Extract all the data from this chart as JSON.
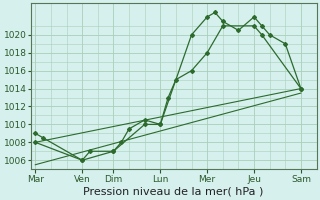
{
  "background_color": "#d6f0ee",
  "grid_color": "#aacfb8",
  "line_color": "#2d6b2d",
  "marker_color": "#2d6b2d",
  "xlabel": "Pression niveau de la mer( hPa )",
  "xlabel_fontsize": 8,
  "ylim": [
    1005.0,
    1023.5
  ],
  "yticks": [
    1006,
    1008,
    1010,
    1012,
    1014,
    1016,
    1018,
    1020
  ],
  "day_labels": [
    "Mar",
    "Ven",
    "Dim",
    "Lun",
    "Mer",
    "Jeu",
    "Sam"
  ],
  "day_positions": [
    0,
    3,
    5,
    8,
    11,
    14,
    17
  ],
  "xlim": [
    -0.3,
    18.0
  ],
  "series1_x": [
    0,
    0.5,
    3,
    3.5,
    5,
    5.5,
    6,
    7,
    8,
    8.5,
    9,
    10,
    11,
    12,
    14,
    14.5,
    17
  ],
  "series1_y": [
    1009,
    1008.5,
    1006,
    1007,
    1007,
    1008,
    1009.5,
    1010.5,
    1010,
    1013,
    1015,
    1016,
    1018,
    1021,
    1021,
    1020,
    1014
  ],
  "series2_x": [
    0,
    3,
    5,
    7,
    8,
    10,
    11,
    11.5,
    12,
    13,
    14,
    14.5,
    15,
    16,
    17
  ],
  "series2_y": [
    1008,
    1006,
    1007,
    1010,
    1010,
    1020,
    1022,
    1022.5,
    1021.5,
    1020.5,
    1022,
    1021,
    1020,
    1019,
    1014
  ],
  "series3_x": [
    0,
    17
  ],
  "series3_y": [
    1008,
    1014
  ],
  "series4_x": [
    0,
    17
  ],
  "series4_y": [
    1005.5,
    1013.5
  ]
}
